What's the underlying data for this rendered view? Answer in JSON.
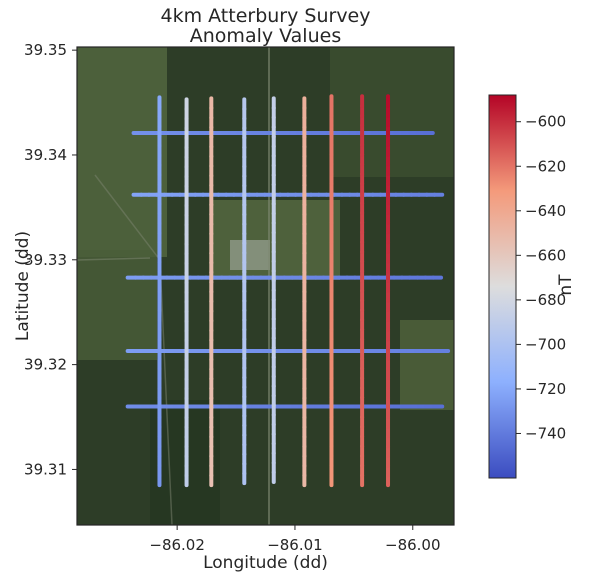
{
  "chart_data": {
    "type": "scatter",
    "title": "4km Atterbury Survey",
    "subtitle": "Anomaly Values",
    "xlabel": "Longitude (dd)",
    "ylabel": "Latitude (dd)",
    "xlim": [
      -86.0285,
      -85.9965
    ],
    "ylim": [
      39.3047,
      39.3503
    ],
    "xticks": [
      -86.02,
      -86.01,
      -86.0
    ],
    "xtick_labels": [
      "−86.02",
      "−86.01",
      "−86.00"
    ],
    "yticks": [
      39.31,
      39.32,
      39.33,
      39.34,
      39.35
    ],
    "ytick_labels": [
      "39.31",
      "39.32",
      "39.33",
      "39.34",
      "39.35"
    ],
    "grid": false,
    "background": "satellite imagery",
    "colormap": "coolwarm",
    "colorbar": {
      "label": "nT",
      "range": [
        -760,
        -588
      ],
      "ticks": [
        -740,
        -720,
        -700,
        -680,
        -660,
        -640,
        -620,
        -600
      ],
      "tick_labels": [
        "−740",
        "−720",
        "−700",
        "−680",
        "−660",
        "−640",
        "−620",
        "−600"
      ]
    },
    "series": [
      {
        "orientation": "ns",
        "x": -86.0215,
        "y_range": [
          39.3085,
          39.3455
        ],
        "value_range": [
          -728,
          -720
        ]
      },
      {
        "orientation": "ns",
        "x": -86.0192,
        "y_range": [
          39.3085,
          39.3453
        ],
        "value_range": [
          -690,
          -682
        ]
      },
      {
        "orientation": "ns",
        "x": -86.0171,
        "y_range": [
          39.3085,
          39.3454
        ],
        "value_range": [
          -655,
          -650
        ]
      },
      {
        "orientation": "ns",
        "x": -86.0143,
        "y_range": [
          39.3087,
          39.3453
        ],
        "value_range": [
          -700,
          -695
        ]
      },
      {
        "orientation": "ns",
        "x": -86.0118,
        "y_range": [
          39.3088,
          39.3454
        ],
        "value_range": [
          -690,
          -688
        ]
      },
      {
        "orientation": "ns",
        "x": -86.0092,
        "y_range": [
          39.3085,
          39.3454
        ],
        "value_range": [
          -650,
          -645
        ]
      },
      {
        "orientation": "ns",
        "x": -86.0069,
        "y_range": [
          39.3085,
          39.3456
        ],
        "value_range": [
          -630,
          -620
        ]
      },
      {
        "orientation": "ns",
        "x": -86.0043,
        "y_range": [
          39.3085,
          39.3456
        ],
        "value_range": [
          -620,
          -600
        ]
      },
      {
        "orientation": "ns",
        "x": -86.0021,
        "y_range": [
          39.3085,
          39.3456
        ],
        "value_range": [
          -615,
          -590
        ]
      },
      {
        "orientation": "ew",
        "y": 39.3421,
        "x_range": [
          -86.0237,
          -85.9983
        ],
        "value_range": [
          -730,
          -745
        ]
      },
      {
        "orientation": "ew",
        "y": 39.3362,
        "x_range": [
          -86.0237,
          -85.9975
        ],
        "value_range": [
          -722,
          -738
        ]
      },
      {
        "orientation": "ew",
        "y": 39.3283,
        "x_range": [
          -86.0242,
          -85.9976
        ],
        "value_range": [
          -725,
          -742
        ]
      },
      {
        "orientation": "ew",
        "y": 39.3213,
        "x_range": [
          -86.0242,
          -85.997
        ],
        "value_range": [
          -725,
          -738
        ]
      },
      {
        "orientation": "ew",
        "y": 39.316,
        "x_range": [
          -86.0242,
          -85.9975
        ],
        "value_range": [
          -732,
          -745
        ]
      }
    ]
  }
}
